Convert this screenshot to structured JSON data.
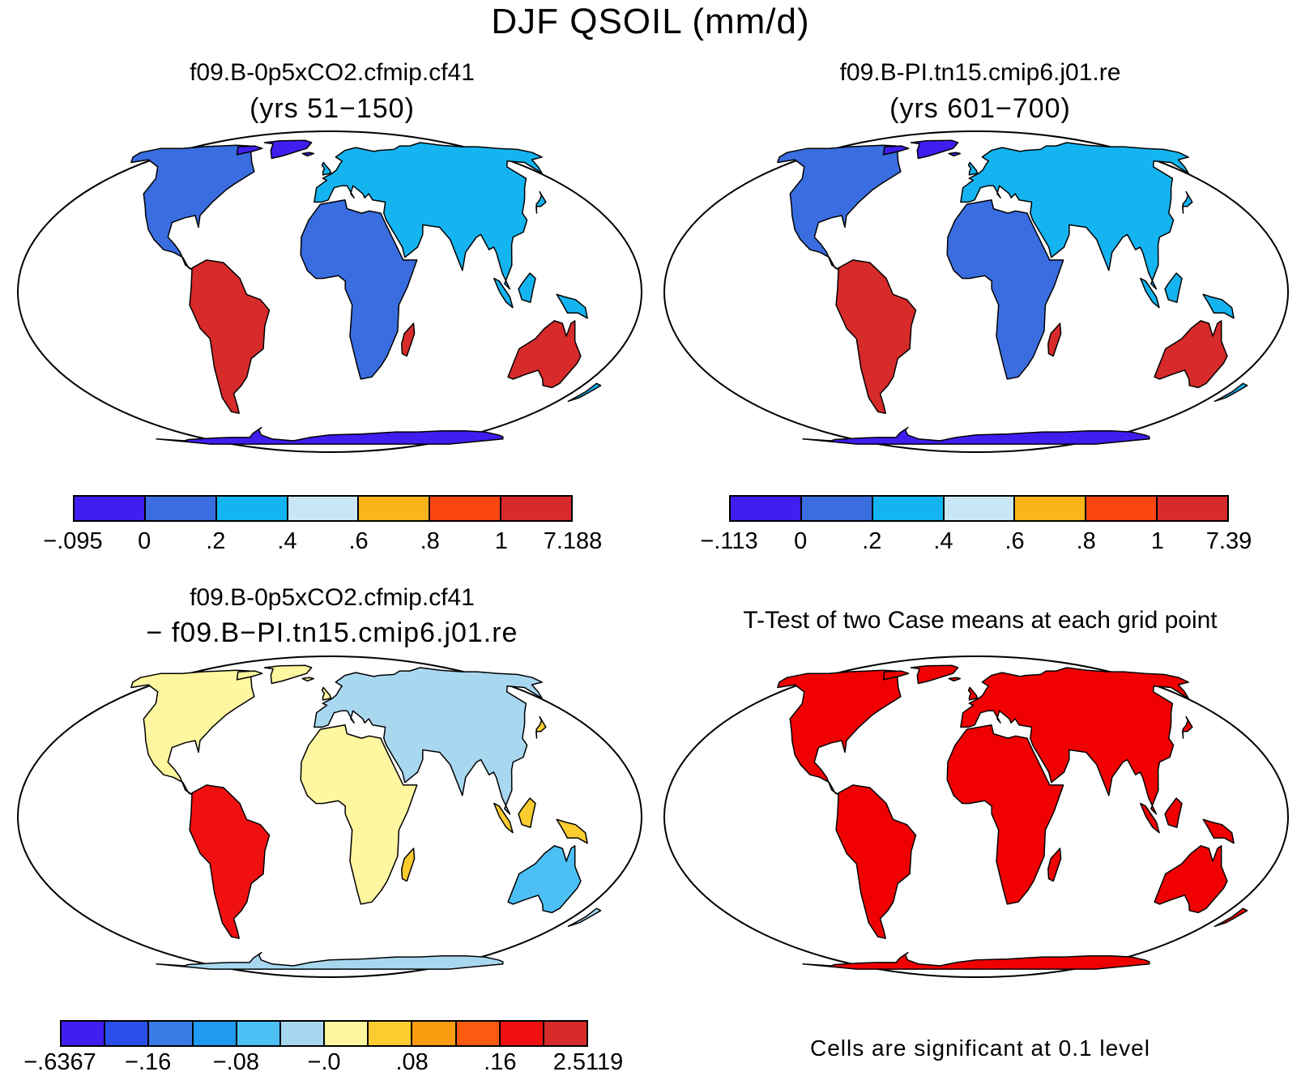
{
  "title": "DJF QSOIL (mm/d)",
  "panels": [
    {
      "id": "case1",
      "title": "f09.B-0p5xCO2.cfmip.cf41",
      "subtitle": "(yrs 51−150)",
      "colorbar": {
        "colors": [
          "#3f1ef0",
          "#3a6de0",
          "#14b4f0",
          "#c8e6f5",
          "#fbb41c",
          "#fb4610",
          "#d72a2a"
        ],
        "ticks": [
          "−.095",
          "0",
          ".2",
          ".4",
          ".6",
          ".8",
          "1",
          "7.188"
        ]
      }
    },
    {
      "id": "case2",
      "title": "f09.B-PI.tn15.cmip6.j01.re",
      "subtitle": "(yrs 601−700)",
      "colorbar": {
        "colors": [
          "#3f1ef0",
          "#3a6de0",
          "#14b4f0",
          "#c8e6f5",
          "#fbb41c",
          "#fb4610",
          "#d72a2a"
        ],
        "ticks": [
          "−.113",
          "0",
          ".2",
          ".4",
          ".6",
          ".8",
          "1",
          "7.39"
        ]
      }
    },
    {
      "id": "diff",
      "title": "f09.B-0p5xCO2.cfmip.cf41",
      "subtitle": "− f09.B−PI.tn15.cmip6.j01.re",
      "colorbar": {
        "colors": [
          "#3f1ef0",
          "#2a4fe8",
          "#3a7ce6",
          "#1e9af0",
          "#4cc0f5",
          "#a8d8f0",
          "#fff6a0",
          "#fbcc30",
          "#fb9c10",
          "#fb5a10",
          "#f01010",
          "#d72a2a"
        ],
        "ticks": [
          "−.6367",
          "−.16",
          "−.08",
          "−.0",
          ".08",
          ".16",
          "2.5119"
        ]
      }
    },
    {
      "id": "ttest",
      "title": "T-Test of two Case means at each grid point",
      "note": "Cells are significant at 0.1 level",
      "significance_color": "#f00000"
    }
  ]
}
